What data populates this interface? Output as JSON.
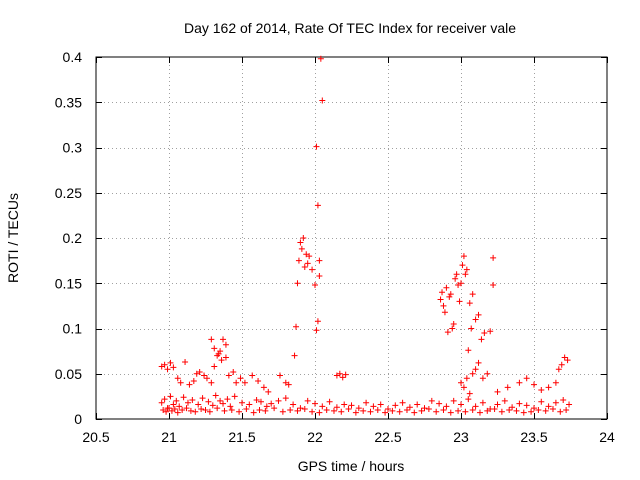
{
  "chart_data": {
    "type": "scatter",
    "title": "Day 162 of 2014, Rate Of TEC Index for receiver vale",
    "xlabel": "GPS time / hours",
    "ylabel": "ROTI / TECUs",
    "xlim": [
      20.5,
      24
    ],
    "ylim": [
      0,
      0.4
    ],
    "xticks": [
      "20.5",
      "21",
      "21.5",
      "22",
      "22.5",
      "23",
      "23.5",
      "24"
    ],
    "yticks": [
      "0",
      "0.05",
      "0.1",
      "0.15",
      "0.2",
      "0.25",
      "0.3",
      "0.35",
      "0.4"
    ],
    "grid": true,
    "marker": "+",
    "color": "#ff0000",
    "series": [
      {
        "name": "ROTI",
        "x": [
          20.95,
          20.97,
          20.99,
          21.01,
          21.03,
          21.05,
          21.07,
          21.1,
          21.13,
          21.16,
          21.2,
          21.23,
          21.27,
          21.3,
          21.32,
          21.35,
          21.37,
          21.4,
          21.42,
          21.45,
          21.5,
          21.55,
          21.6,
          21.63,
          21.67,
          21.7,
          21.75,
          21.8,
          21.85,
          21.9,
          21.95,
          22.0,
          22.05,
          22.1,
          22.15,
          22.2,
          22.25,
          22.3,
          22.35,
          22.4,
          22.45,
          22.5,
          22.55,
          22.6,
          22.65,
          22.7,
          22.75,
          22.8,
          22.85,
          22.9,
          22.95,
          23.0,
          23.05,
          23.1,
          23.15,
          23.2,
          23.25,
          23.3,
          23.35,
          23.4,
          23.45,
          23.5,
          23.55,
          23.6,
          23.65,
          23.7,
          23.74,
          20.96,
          20.98,
          21.0,
          21.02,
          21.04,
          21.06,
          21.09,
          21.12,
          21.15,
          21.18,
          21.22,
          21.25,
          21.28,
          21.33,
          21.38,
          21.43,
          21.48,
          21.53,
          21.58,
          21.62,
          21.66,
          21.72,
          21.78,
          21.83,
          21.88,
          21.93,
          21.98,
          22.03,
          22.08,
          22.13,
          22.18,
          22.23,
          22.28,
          22.33,
          22.38,
          22.43,
          22.48,
          22.53,
          22.58,
          22.63,
          22.68,
          22.73,
          22.78,
          22.83,
          22.88,
          22.93,
          22.98,
          23.03,
          23.08,
          23.13,
          23.18,
          23.23,
          23.28,
          23.33,
          23.38,
          23.43,
          23.48,
          23.53,
          23.58,
          23.63,
          23.68,
          23.72,
          20.95,
          20.97,
          20.99,
          21.01,
          21.03,
          21.06,
          21.08,
          21.11,
          21.14,
          21.17,
          21.19,
          21.21,
          21.24,
          21.26,
          21.29,
          21.31,
          21.34,
          21.36,
          21.39,
          21.41,
          21.44,
          21.46,
          21.49,
          21.52,
          21.57,
          21.61,
          21.65,
          21.68,
          21.76,
          21.8,
          21.82,
          21.29,
          21.31,
          21.33,
          21.35,
          21.37,
          21.39,
          21.86,
          21.87,
          21.88,
          21.89,
          21.9,
          21.91,
          21.92,
          21.93,
          21.94,
          21.95,
          21.96,
          21.98,
          22.0,
          22.01,
          22.02,
          22.03,
          22.03,
          22.04,
          22.05,
          22.02,
          22.01,
          22.86,
          22.87,
          22.88,
          22.89,
          22.9,
          22.91,
          22.92,
          22.93,
          22.94,
          22.95,
          22.96,
          22.97,
          22.98,
          22.99,
          23.0,
          23.01,
          23.02,
          23.03,
          23.04,
          23.05,
          23.06,
          23.07,
          23.08,
          23.1,
          23.12,
          23.14,
          23.16,
          23.2,
          23.22,
          23.22,
          23.0,
          23.02,
          23.04,
          23.06,
          23.08,
          23.1,
          23.12,
          23.15,
          23.18,
          23.25,
          23.32,
          23.4,
          23.45,
          23.5,
          23.55,
          23.6,
          23.65,
          23.67,
          23.69,
          23.71,
          23.73,
          22.15,
          22.17,
          22.19,
          22.21
        ],
        "y": [
          0.018,
          0.022,
          0.012,
          0.025,
          0.016,
          0.02,
          0.014,
          0.024,
          0.018,
          0.021,
          0.016,
          0.023,
          0.019,
          0.015,
          0.026,
          0.02,
          0.017,
          0.022,
          0.014,
          0.025,
          0.018,
          0.016,
          0.021,
          0.019,
          0.014,
          0.017,
          0.02,
          0.023,
          0.016,
          0.012,
          0.02,
          0.017,
          0.014,
          0.019,
          0.013,
          0.016,
          0.015,
          0.012,
          0.018,
          0.014,
          0.016,
          0.011,
          0.015,
          0.018,
          0.013,
          0.016,
          0.012,
          0.02,
          0.017,
          0.014,
          0.02,
          0.016,
          0.022,
          0.014,
          0.018,
          0.011,
          0.016,
          0.02,
          0.013,
          0.017,
          0.015,
          0.012,
          0.019,
          0.014,
          0.018,
          0.021,
          0.016,
          0.01,
          0.008,
          0.012,
          0.009,
          0.011,
          0.007,
          0.01,
          0.012,
          0.009,
          0.008,
          0.011,
          0.01,
          0.008,
          0.012,
          0.009,
          0.01,
          0.008,
          0.011,
          0.007,
          0.01,
          0.009,
          0.012,
          0.008,
          0.01,
          0.009,
          0.011,
          0.008,
          0.007,
          0.01,
          0.009,
          0.008,
          0.011,
          0.007,
          0.009,
          0.008,
          0.01,
          0.007,
          0.009,
          0.008,
          0.01,
          0.007,
          0.009,
          0.011,
          0.008,
          0.01,
          0.007,
          0.009,
          0.008,
          0.01,
          0.007,
          0.009,
          0.011,
          0.008,
          0.01,
          0.009,
          0.007,
          0.008,
          0.01,
          0.009,
          0.011,
          0.008,
          0.01,
          0.058,
          0.06,
          0.055,
          0.062,
          0.057,
          0.045,
          0.04,
          0.063,
          0.038,
          0.042,
          0.05,
          0.052,
          0.048,
          0.045,
          0.04,
          0.058,
          0.072,
          0.065,
          0.068,
          0.048,
          0.052,
          0.04,
          0.045,
          0.04,
          0.048,
          0.042,
          0.035,
          0.03,
          0.048,
          0.04,
          0.038,
          0.088,
          0.078,
          0.07,
          0.075,
          0.088,
          0.082,
          0.07,
          0.102,
          0.15,
          0.175,
          0.195,
          0.188,
          0.2,
          0.168,
          0.182,
          0.172,
          0.18,
          0.165,
          0.148,
          0.098,
          0.108,
          0.175,
          0.158,
          0.398,
          0.352,
          0.236,
          0.301,
          0.132,
          0.14,
          0.125,
          0.118,
          0.145,
          0.096,
          0.135,
          0.138,
          0.1,
          0.105,
          0.155,
          0.16,
          0.148,
          0.13,
          0.15,
          0.17,
          0.18,
          0.16,
          0.165,
          0.076,
          0.128,
          0.1,
          0.138,
          0.11,
          0.115,
          0.088,
          0.095,
          0.097,
          0.148,
          0.178,
          0.04,
          0.035,
          0.045,
          0.028,
          0.05,
          0.055,
          0.062,
          0.045,
          0.05,
          0.03,
          0.035,
          0.04,
          0.045,
          0.038,
          0.032,
          0.035,
          0.04,
          0.055,
          0.06,
          0.068,
          0.065,
          0.048,
          0.05,
          0.046,
          0.049
        ]
      }
    ]
  }
}
